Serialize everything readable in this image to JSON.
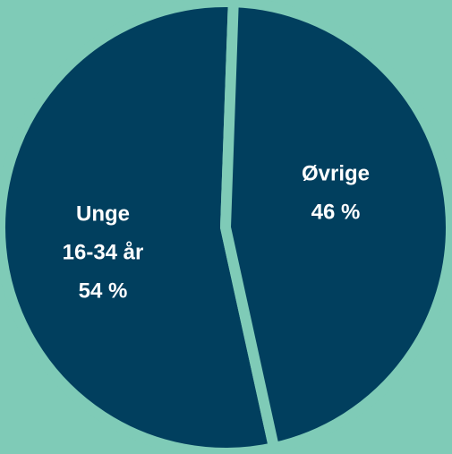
{
  "chart_data": {
    "type": "pie",
    "categories": [
      [
        "Unge",
        "16-34 år"
      ],
      [
        "Øvrige"
      ]
    ],
    "values": [
      54,
      46
    ],
    "value_labels": [
      "54 %",
      "46 %"
    ],
    "color": "#013f5e",
    "background": "#7fcbb7"
  }
}
